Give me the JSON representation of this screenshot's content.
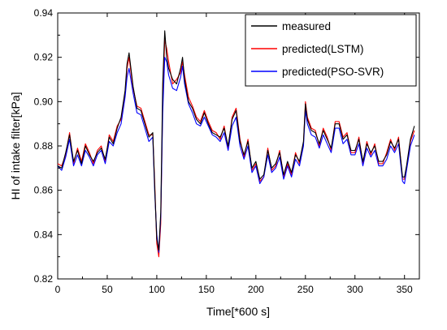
{
  "chart_data": {
    "type": "line",
    "title": "",
    "xlabel": "Time[*600 s]",
    "ylabel": "HI of intake filter[kPa]",
    "xlim": [
      0,
      365
    ],
    "ylim": [
      0.82,
      0.94
    ],
    "x_ticks": [
      0,
      50,
      100,
      150,
      200,
      250,
      300,
      350
    ],
    "x_tick_labels": [
      "0",
      "50",
      "100",
      "150",
      "200",
      "250",
      "300",
      "350"
    ],
    "y_ticks": [
      0.82,
      0.84,
      0.86,
      0.88,
      0.9,
      0.92,
      0.94
    ],
    "y_tick_labels": [
      "0.82",
      "0.84",
      "0.86",
      "0.88",
      "0.90",
      "0.92",
      "0.94"
    ],
    "grid": false,
    "legend_position": "top-right",
    "series": [
      {
        "name": "measured",
        "color": "#000000",
        "x": [
          0,
          4,
          8,
          12,
          16,
          20,
          24,
          28,
          32,
          36,
          40,
          44,
          48,
          52,
          56,
          60,
          64,
          68,
          70,
          72,
          76,
          80,
          84,
          88,
          92,
          96,
          98,
          100,
          102,
          104,
          106,
          108,
          110,
          112,
          116,
          120,
          124,
          126,
          128,
          132,
          136,
          140,
          144,
          148,
          152,
          156,
          160,
          164,
          168,
          172,
          176,
          180,
          184,
          188,
          192,
          196,
          200,
          204,
          208,
          212,
          216,
          220,
          224,
          228,
          232,
          236,
          240,
          244,
          248,
          250,
          252,
          256,
          260,
          264,
          268,
          272,
          276,
          280,
          284,
          288,
          292,
          296,
          300,
          304,
          308,
          312,
          316,
          320,
          324,
          328,
          332,
          336,
          340,
          344,
          348,
          350,
          352,
          356,
          360
        ],
        "values": [
          0.871,
          0.87,
          0.877,
          0.885,
          0.873,
          0.878,
          0.872,
          0.88,
          0.876,
          0.873,
          0.877,
          0.879,
          0.874,
          0.884,
          0.881,
          0.888,
          0.893,
          0.905,
          0.917,
          0.922,
          0.907,
          0.897,
          0.896,
          0.89,
          0.884,
          0.886,
          0.86,
          0.838,
          0.833,
          0.85,
          0.908,
          0.932,
          0.92,
          0.915,
          0.91,
          0.908,
          0.915,
          0.92,
          0.91,
          0.9,
          0.897,
          0.892,
          0.89,
          0.895,
          0.89,
          0.886,
          0.885,
          0.884,
          0.888,
          0.88,
          0.892,
          0.896,
          0.882,
          0.876,
          0.882,
          0.87,
          0.873,
          0.865,
          0.867,
          0.878,
          0.87,
          0.872,
          0.877,
          0.867,
          0.873,
          0.868,
          0.876,
          0.873,
          0.882,
          0.899,
          0.892,
          0.887,
          0.886,
          0.881,
          0.887,
          0.883,
          0.879,
          0.89,
          0.89,
          0.883,
          0.885,
          0.878,
          0.878,
          0.883,
          0.873,
          0.881,
          0.877,
          0.88,
          0.873,
          0.873,
          0.876,
          0.882,
          0.879,
          0.883,
          0.866,
          0.866,
          0.871,
          0.883,
          0.889
        ]
      },
      {
        "name": "predicted(LSTM)",
        "color": "#ff0000",
        "x": [
          0,
          4,
          8,
          12,
          16,
          20,
          24,
          28,
          32,
          36,
          40,
          44,
          48,
          52,
          56,
          60,
          64,
          68,
          70,
          72,
          76,
          80,
          84,
          88,
          92,
          96,
          98,
          100,
          102,
          104,
          106,
          108,
          110,
          112,
          116,
          120,
          124,
          126,
          128,
          132,
          136,
          140,
          144,
          148,
          152,
          156,
          160,
          164,
          168,
          172,
          176,
          180,
          184,
          188,
          192,
          196,
          200,
          204,
          208,
          212,
          216,
          220,
          224,
          228,
          232,
          236,
          240,
          244,
          248,
          250,
          252,
          256,
          260,
          264,
          268,
          272,
          276,
          280,
          284,
          288,
          292,
          296,
          300,
          304,
          308,
          312,
          316,
          320,
          324,
          328,
          332,
          336,
          340,
          344,
          348,
          350,
          352,
          356,
          360
        ],
        "values": [
          0.872,
          0.871,
          0.876,
          0.886,
          0.872,
          0.879,
          0.873,
          0.881,
          0.877,
          0.872,
          0.878,
          0.88,
          0.873,
          0.885,
          0.882,
          0.889,
          0.892,
          0.904,
          0.915,
          0.92,
          0.906,
          0.898,
          0.897,
          0.891,
          0.885,
          0.885,
          0.862,
          0.836,
          0.83,
          0.845,
          0.9,
          0.928,
          0.924,
          0.918,
          0.908,
          0.91,
          0.913,
          0.918,
          0.912,
          0.902,
          0.898,
          0.893,
          0.891,
          0.896,
          0.891,
          0.887,
          0.886,
          0.883,
          0.889,
          0.879,
          0.893,
          0.897,
          0.883,
          0.875,
          0.883,
          0.869,
          0.872,
          0.864,
          0.866,
          0.879,
          0.869,
          0.871,
          0.878,
          0.866,
          0.872,
          0.867,
          0.877,
          0.872,
          0.881,
          0.9,
          0.893,
          0.888,
          0.887,
          0.88,
          0.888,
          0.884,
          0.878,
          0.891,
          0.891,
          0.884,
          0.886,
          0.877,
          0.877,
          0.884,
          0.872,
          0.882,
          0.876,
          0.881,
          0.872,
          0.872,
          0.877,
          0.883,
          0.878,
          0.884,
          0.865,
          0.865,
          0.87,
          0.882,
          0.887
        ]
      },
      {
        "name": "predicted(PSO-SVR)",
        "color": "#0000ff",
        "x": [
          0,
          4,
          8,
          12,
          16,
          20,
          24,
          28,
          32,
          36,
          40,
          44,
          48,
          52,
          56,
          60,
          64,
          68,
          70,
          72,
          76,
          80,
          84,
          88,
          92,
          96,
          98,
          100,
          102,
          104,
          106,
          108,
          110,
          112,
          116,
          120,
          124,
          126,
          128,
          132,
          136,
          140,
          144,
          148,
          152,
          156,
          160,
          164,
          168,
          172,
          176,
          180,
          184,
          188,
          192,
          196,
          200,
          204,
          208,
          212,
          216,
          220,
          224,
          228,
          232,
          236,
          240,
          244,
          248,
          250,
          252,
          256,
          260,
          264,
          268,
          272,
          276,
          280,
          284,
          288,
          292,
          296,
          300,
          304,
          308,
          312,
          316,
          320,
          324,
          328,
          332,
          336,
          340,
          344,
          348,
          350,
          352,
          356,
          360
        ],
        "values": [
          0.871,
          0.869,
          0.875,
          0.883,
          0.871,
          0.876,
          0.871,
          0.878,
          0.875,
          0.871,
          0.876,
          0.878,
          0.872,
          0.882,
          0.88,
          0.886,
          0.89,
          0.902,
          0.911,
          0.915,
          0.904,
          0.895,
          0.894,
          0.888,
          0.882,
          0.884,
          0.858,
          0.84,
          0.832,
          0.848,
          0.895,
          0.92,
          0.918,
          0.912,
          0.906,
          0.905,
          0.911,
          0.916,
          0.908,
          0.899,
          0.895,
          0.89,
          0.889,
          0.893,
          0.889,
          0.885,
          0.884,
          0.882,
          0.886,
          0.878,
          0.889,
          0.893,
          0.88,
          0.874,
          0.88,
          0.868,
          0.871,
          0.863,
          0.866,
          0.876,
          0.868,
          0.87,
          0.875,
          0.865,
          0.871,
          0.866,
          0.874,
          0.871,
          0.88,
          0.896,
          0.89,
          0.885,
          0.884,
          0.879,
          0.885,
          0.881,
          0.877,
          0.888,
          0.888,
          0.881,
          0.883,
          0.876,
          0.876,
          0.881,
          0.871,
          0.879,
          0.875,
          0.878,
          0.871,
          0.871,
          0.874,
          0.88,
          0.877,
          0.881,
          0.864,
          0.863,
          0.869,
          0.88,
          0.885
        ]
      }
    ]
  }
}
